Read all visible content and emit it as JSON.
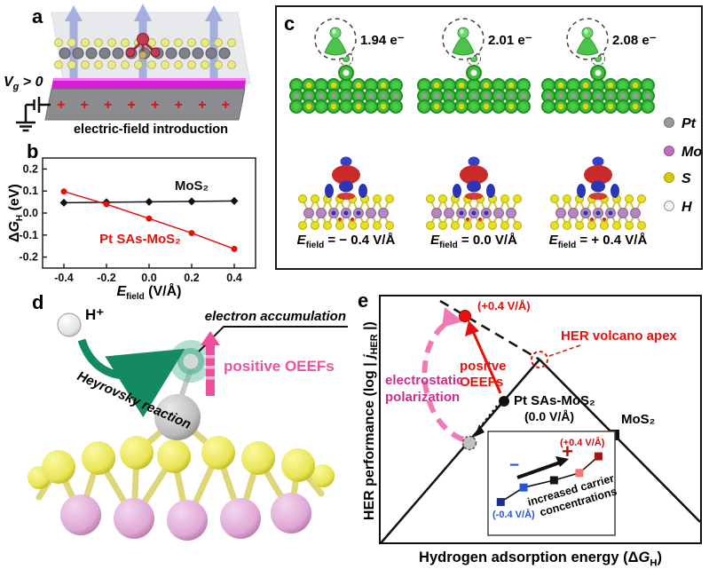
{
  "figure": {
    "panel_labels": {
      "a": "a",
      "b": "b",
      "c": "c",
      "d": "d",
      "e": "e"
    }
  },
  "panel_a": {
    "gate_voltage": {
      "symbol": "V",
      "sub": "g",
      "rest": " > 0"
    },
    "plus_signs": "+  +  +  +  +  +  +  +",
    "caption": "electric-field introduction"
  },
  "panel_b": {
    "ylabel": {
      "delta": "Δ",
      "symbol": "G",
      "sub": "H",
      "unit": " (eV)"
    },
    "xlabel": {
      "symbol": "E",
      "sub": "field",
      "unit": " (V/Å)"
    }
  },
  "panel_c": {
    "electron_counts": [
      "1.94 e⁻",
      "2.01 e⁻",
      "2.08 e⁻"
    ],
    "efield": {
      "symbol": "E",
      "sub": "field",
      "values": [
        "= − 0.4 V/Å",
        "= 0.0 V/Å",
        "= + 0.4 V/Å"
      ]
    },
    "legend": [
      {
        "label": "Pt",
        "color": "#9a9a9a"
      },
      {
        "label": "Mo",
        "color": "#c06ec0"
      },
      {
        "label": "S",
        "color": "#d6cd00"
      },
      {
        "label": "H",
        "color": "#f5f5f5"
      }
    ]
  },
  "panel_d": {
    "proton": "H⁺",
    "reaction": "Heyrovsky reaction",
    "accumulation": "electron accumulation",
    "oeefs": "positive OEEFs"
  },
  "panel_e": {
    "ylabel": {
      "pre": "HER performance (log | ",
      "j": "j",
      "sub": "HER",
      "post": " |)"
    },
    "xlabel": {
      "pre": "Hydrogen adsorption energy (Δ",
      "g": "G",
      "sub": "H",
      "post": ")"
    },
    "point_plus04": "(+0.4 V/Å)",
    "apex": "HER volcano apex",
    "oeefs_line1": "positve",
    "oeefs_line2": "OEEFs",
    "electro_line1": "electrostatic",
    "electro_line2": "polarization",
    "pt_label": "Pt SAs-MoS₂",
    "pt_sub": "(0.0 V/Å)",
    "mos2_label": "MoS₂"
  },
  "chart_data": [
    {
      "id": "panel_b_plot",
      "type": "line",
      "x": [
        -0.4,
        -0.2,
        0.0,
        0.2,
        0.4
      ],
      "series": [
        {
          "name": "MoS₂",
          "color": "#111111",
          "marker": "diamond",
          "values": [
            0.047,
            0.049,
            0.051,
            0.053,
            0.055
          ]
        },
        {
          "name": "Pt SAs-MoS₂",
          "color": "#e8100c",
          "marker": "circle",
          "values": [
            0.098,
            0.04,
            -0.025,
            -0.091,
            -0.163
          ]
        }
      ],
      "xlabel": "E_field (V/Å)",
      "ylabel": "ΔG_H (eV)",
      "xlim": [
        -0.5,
        0.5
      ],
      "ylim": [
        -0.25,
        0.25
      ],
      "xticks": [
        -0.4,
        -0.2,
        0.0,
        0.2,
        0.4
      ],
      "yticks": [
        0.2,
        0.1,
        0.0,
        -0.1,
        -0.2
      ],
      "grid": false,
      "legend_position": "inline-labels"
    },
    {
      "id": "panel_e_volcano",
      "type": "line",
      "subtype": "schematic-volcano",
      "xlabel": "Hydrogen adsorption energy (ΔG_H)",
      "ylabel": "HER performance (log |j_HER|)",
      "points": [
        {
          "label": "Pt SAs-MoS₂ (0.0 V/Å)",
          "marker": "black circle",
          "position": "on left slope, middle"
        },
        {
          "label": "MoS₂",
          "marker": "black square",
          "position": "on right slope"
        },
        {
          "label": "(+0.4 V/Å)",
          "marker": "red circle",
          "position": "upper left, on dashed extension above apex"
        },
        {
          "label": "gray polarized state",
          "marker": "gray dashed circle",
          "position": "lower left slope"
        },
        {
          "label": "HER volcano apex",
          "marker": "red dashed open circle",
          "position": "apex of volcano"
        }
      ],
      "annotations": [
        "positve OEEFs",
        "electrostatic polarization",
        "HER volcano apex"
      ]
    },
    {
      "id": "panel_e_inset",
      "type": "line",
      "x_rel": [
        0.1,
        0.28,
        0.52,
        0.72,
        0.87
      ],
      "y_rel": [
        0.68,
        0.54,
        0.47,
        0.4,
        0.24
      ],
      "colors": [
        "#1b2f8e",
        "#2653e0",
        "#141414",
        "#f4766f",
        "#a51414"
      ],
      "labels": {
        "low": "(-0.4 V/Å)",
        "high": "(+0.4 V/Å)",
        "minus": "−",
        "plus": "+",
        "note1": "increased carrier",
        "note2": "concentrations"
      }
    }
  ]
}
